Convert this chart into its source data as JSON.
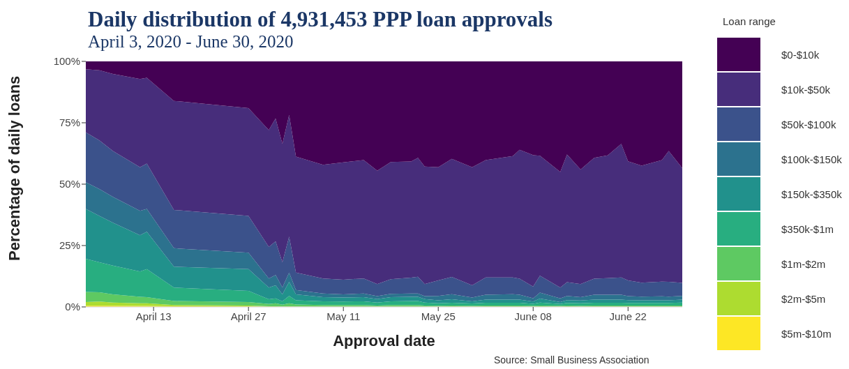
{
  "chart_data": {
    "type": "area",
    "stacked": true,
    "title": "Daily distribution of 4,931,453 PPP loan approvals",
    "subtitle": "April 3, 2020 - June 30, 2020",
    "xlabel": "Approval date",
    "ylabel": "Percentage of daily loans",
    "legend_title": "Loan range",
    "legend": "right",
    "annotations": [
      "Source: Small Business Association"
    ],
    "x": [
      "2020-04-03",
      "2020-04-05",
      "2020-04-07",
      "2020-04-11",
      "2020-04-12",
      "2020-04-16",
      "2020-04-27",
      "2020-04-30",
      "2020-05-01",
      "2020-05-02",
      "2020-05-03",
      "2020-05-04",
      "2020-05-08",
      "2020-05-11",
      "2020-05-14",
      "2020-05-16",
      "2020-05-18",
      "2020-05-21",
      "2020-05-22",
      "2020-05-23",
      "2020-05-25",
      "2020-05-27",
      "2020-05-30",
      "2020-06-01",
      "2020-06-05",
      "2020-06-06",
      "2020-06-08",
      "2020-06-09",
      "2020-06-12",
      "2020-06-13",
      "2020-06-15",
      "2020-06-17",
      "2020-06-19",
      "2020-06-21",
      "2020-06-22",
      "2020-06-24",
      "2020-06-27",
      "2020-06-28",
      "2020-06-30"
    ],
    "xlim": [
      "2020-04-03",
      "2020-06-30"
    ],
    "xticks": [
      {
        "value": "2020-04-13",
        "label": "April 13"
      },
      {
        "value": "2020-04-27",
        "label": "April 27"
      },
      {
        "value": "2020-05-11",
        "label": "May 11"
      },
      {
        "value": "2020-05-25",
        "label": "May 25"
      },
      {
        "value": "2020-06-08",
        "label": "June 08"
      },
      {
        "value": "2020-06-22",
        "label": "June 22"
      }
    ],
    "ylim": [
      0,
      100
    ],
    "yticks": [
      {
        "value": 0,
        "label": "0%"
      },
      {
        "value": 25,
        "label": "25%"
      },
      {
        "value": 50,
        "label": "50%"
      },
      {
        "value": 75,
        "label": "75%"
      },
      {
        "value": 100,
        "label": "100%"
      }
    ],
    "series": [
      {
        "name": "$5m-$10m",
        "color": "#fde725",
        "values": [
          0.5,
          0.5,
          0.5,
          0.4,
          0.4,
          0.3,
          0.2,
          0.1,
          0.1,
          0.1,
          0.1,
          0.1,
          0.1,
          0.1,
          0.1,
          0.1,
          0.1,
          0.1,
          0.1,
          0.1,
          0.1,
          0.1,
          0.1,
          0.1,
          0.1,
          0.1,
          0.1,
          0.1,
          0.1,
          0.1,
          0.1,
          0.1,
          0.1,
          0.1,
          0.1,
          0.1,
          0.1,
          0.1,
          0.1
        ]
      },
      {
        "name": "$2m-$5m",
        "color": "#addc30",
        "values": [
          1.5,
          1.7,
          1.3,
          1.1,
          1.1,
          0.5,
          0.4,
          0.2,
          0.2,
          0.1,
          0.2,
          0.1,
          0.1,
          0.1,
          0.1,
          0.1,
          0.1,
          0.1,
          0.1,
          0.1,
          0.1,
          0.1,
          0.1,
          0.1,
          0.1,
          0.1,
          0.1,
          0.1,
          0.1,
          0.1,
          0.1,
          0.1,
          0.1,
          0.1,
          0.1,
          0.1,
          0.1,
          0.1,
          0.1
        ]
      },
      {
        "name": "$1m-$2m",
        "color": "#5ec962",
        "values": [
          4.1,
          3.8,
          3.3,
          2.6,
          2.5,
          1.6,
          1.4,
          0.9,
          1.2,
          0.7,
          1.2,
          0.8,
          0.6,
          0.6,
          0.6,
          0.4,
          0.6,
          0.6,
          0.6,
          0.4,
          0.3,
          0.4,
          0.3,
          0.4,
          0.4,
          0.4,
          0.3,
          0.4,
          0.3,
          0.4,
          0.3,
          0.4,
          0.4,
          0.4,
          0.4,
          0.4,
          0.4,
          0.4,
          0.4
        ]
      },
      {
        "name": "$350k-$1m",
        "color": "#28ae80",
        "values": [
          13.5,
          12.2,
          11.7,
          10.3,
          11.4,
          5.5,
          4.5,
          1.9,
          2.0,
          1.4,
          3.0,
          1.7,
          1.5,
          1.4,
          1.5,
          1.2,
          1.5,
          1.6,
          1.6,
          1.2,
          1.0,
          1.1,
          0.9,
          1.1,
          1.1,
          1.1,
          0.8,
          1.2,
          0.7,
          1.0,
          1.0,
          1.1,
          1.1,
          1.1,
          1.0,
          1.0,
          1.0,
          1.0,
          1.2
        ]
      },
      {
        "name": "$150k-$350k",
        "color": "#21918c",
        "values": [
          20.3,
          18.9,
          17.5,
          14.8,
          15.2,
          8.5,
          8.9,
          4.8,
          5.3,
          2.8,
          5.7,
          2.4,
          1.7,
          1.6,
          1.7,
          1.4,
          1.7,
          1.7,
          1.7,
          1.4,
          1.2,
          1.4,
          0.9,
          1.3,
          1.3,
          1.3,
          0.9,
          1.6,
          0.8,
          1.2,
          1.1,
          1.3,
          1.3,
          1.3,
          1.2,
          1.1,
          1.1,
          1.1,
          1.2
        ]
      },
      {
        "name": "$100k-$150k",
        "color": "#2c728e",
        "values": [
          10.9,
          10.9,
          10.5,
          9.9,
          9.3,
          7.5,
          6.7,
          3.7,
          4.2,
          2.8,
          3.8,
          1.8,
          1.5,
          1.3,
          1.5,
          1.2,
          1.3,
          1.4,
          1.4,
          1.2,
          1.8,
          2.1,
          1.5,
          2.0,
          2.2,
          2.0,
          1.3,
          2.4,
          1.5,
          1.7,
          1.4,
          2.0,
          2.0,
          2.0,
          1.6,
          1.5,
          1.6,
          1.5,
          1.5
        ]
      },
      {
        "name": "$50k-$100k",
        "color": "#3b528b",
        "values": [
          20.3,
          19.8,
          18.7,
          17.8,
          18.5,
          15.6,
          15.0,
          12.8,
          13.7,
          10.3,
          14.6,
          7.1,
          6.1,
          6.0,
          6.1,
          4.9,
          6.0,
          6.4,
          6.8,
          4.9,
          6.3,
          7.0,
          5.0,
          7.0,
          6.8,
          6.5,
          4.8,
          6.9,
          4.4,
          5.6,
          5.3,
          6.5,
          6.7,
          7.0,
          6.4,
          5.7,
          6.0,
          6.0,
          5.3
        ]
      },
      {
        "name": "$10k-$50k",
        "color": "#472d7b",
        "values": [
          25.7,
          28.6,
          31.4,
          35.9,
          34.9,
          44.4,
          43.9,
          47.6,
          50.1,
          48.2,
          49.6,
          47.2,
          46.3,
          47.8,
          48.2,
          46.2,
          47.7,
          47.3,
          48.4,
          47.9,
          46.1,
          48.1,
          48.1,
          47.8,
          49.4,
          52.5,
          53.5,
          48.9,
          47.1,
          52.0,
          46.7,
          49.2,
          50.0,
          54.4,
          48.5,
          47.6,
          49.5,
          53.3,
          46.7
        ]
      },
      {
        "name": "$0-$10k",
        "color": "#440154",
        "values": [
          3.2,
          3.6,
          5.1,
          7.2,
          6.7,
          16.1,
          19.0,
          28.0,
          23.2,
          33.6,
          21.8,
          38.8,
          42.1,
          41.1,
          40.2,
          44.5,
          41.0,
          40.8,
          39.3,
          42.8,
          43.1,
          39.7,
          43.1,
          40.2,
          38.6,
          36.0,
          38.2,
          38.4,
          45.0,
          37.9,
          44.0,
          39.3,
          38.3,
          33.6,
          40.7,
          42.5,
          40.2,
          36.5,
          43.5
        ]
      }
    ]
  }
}
